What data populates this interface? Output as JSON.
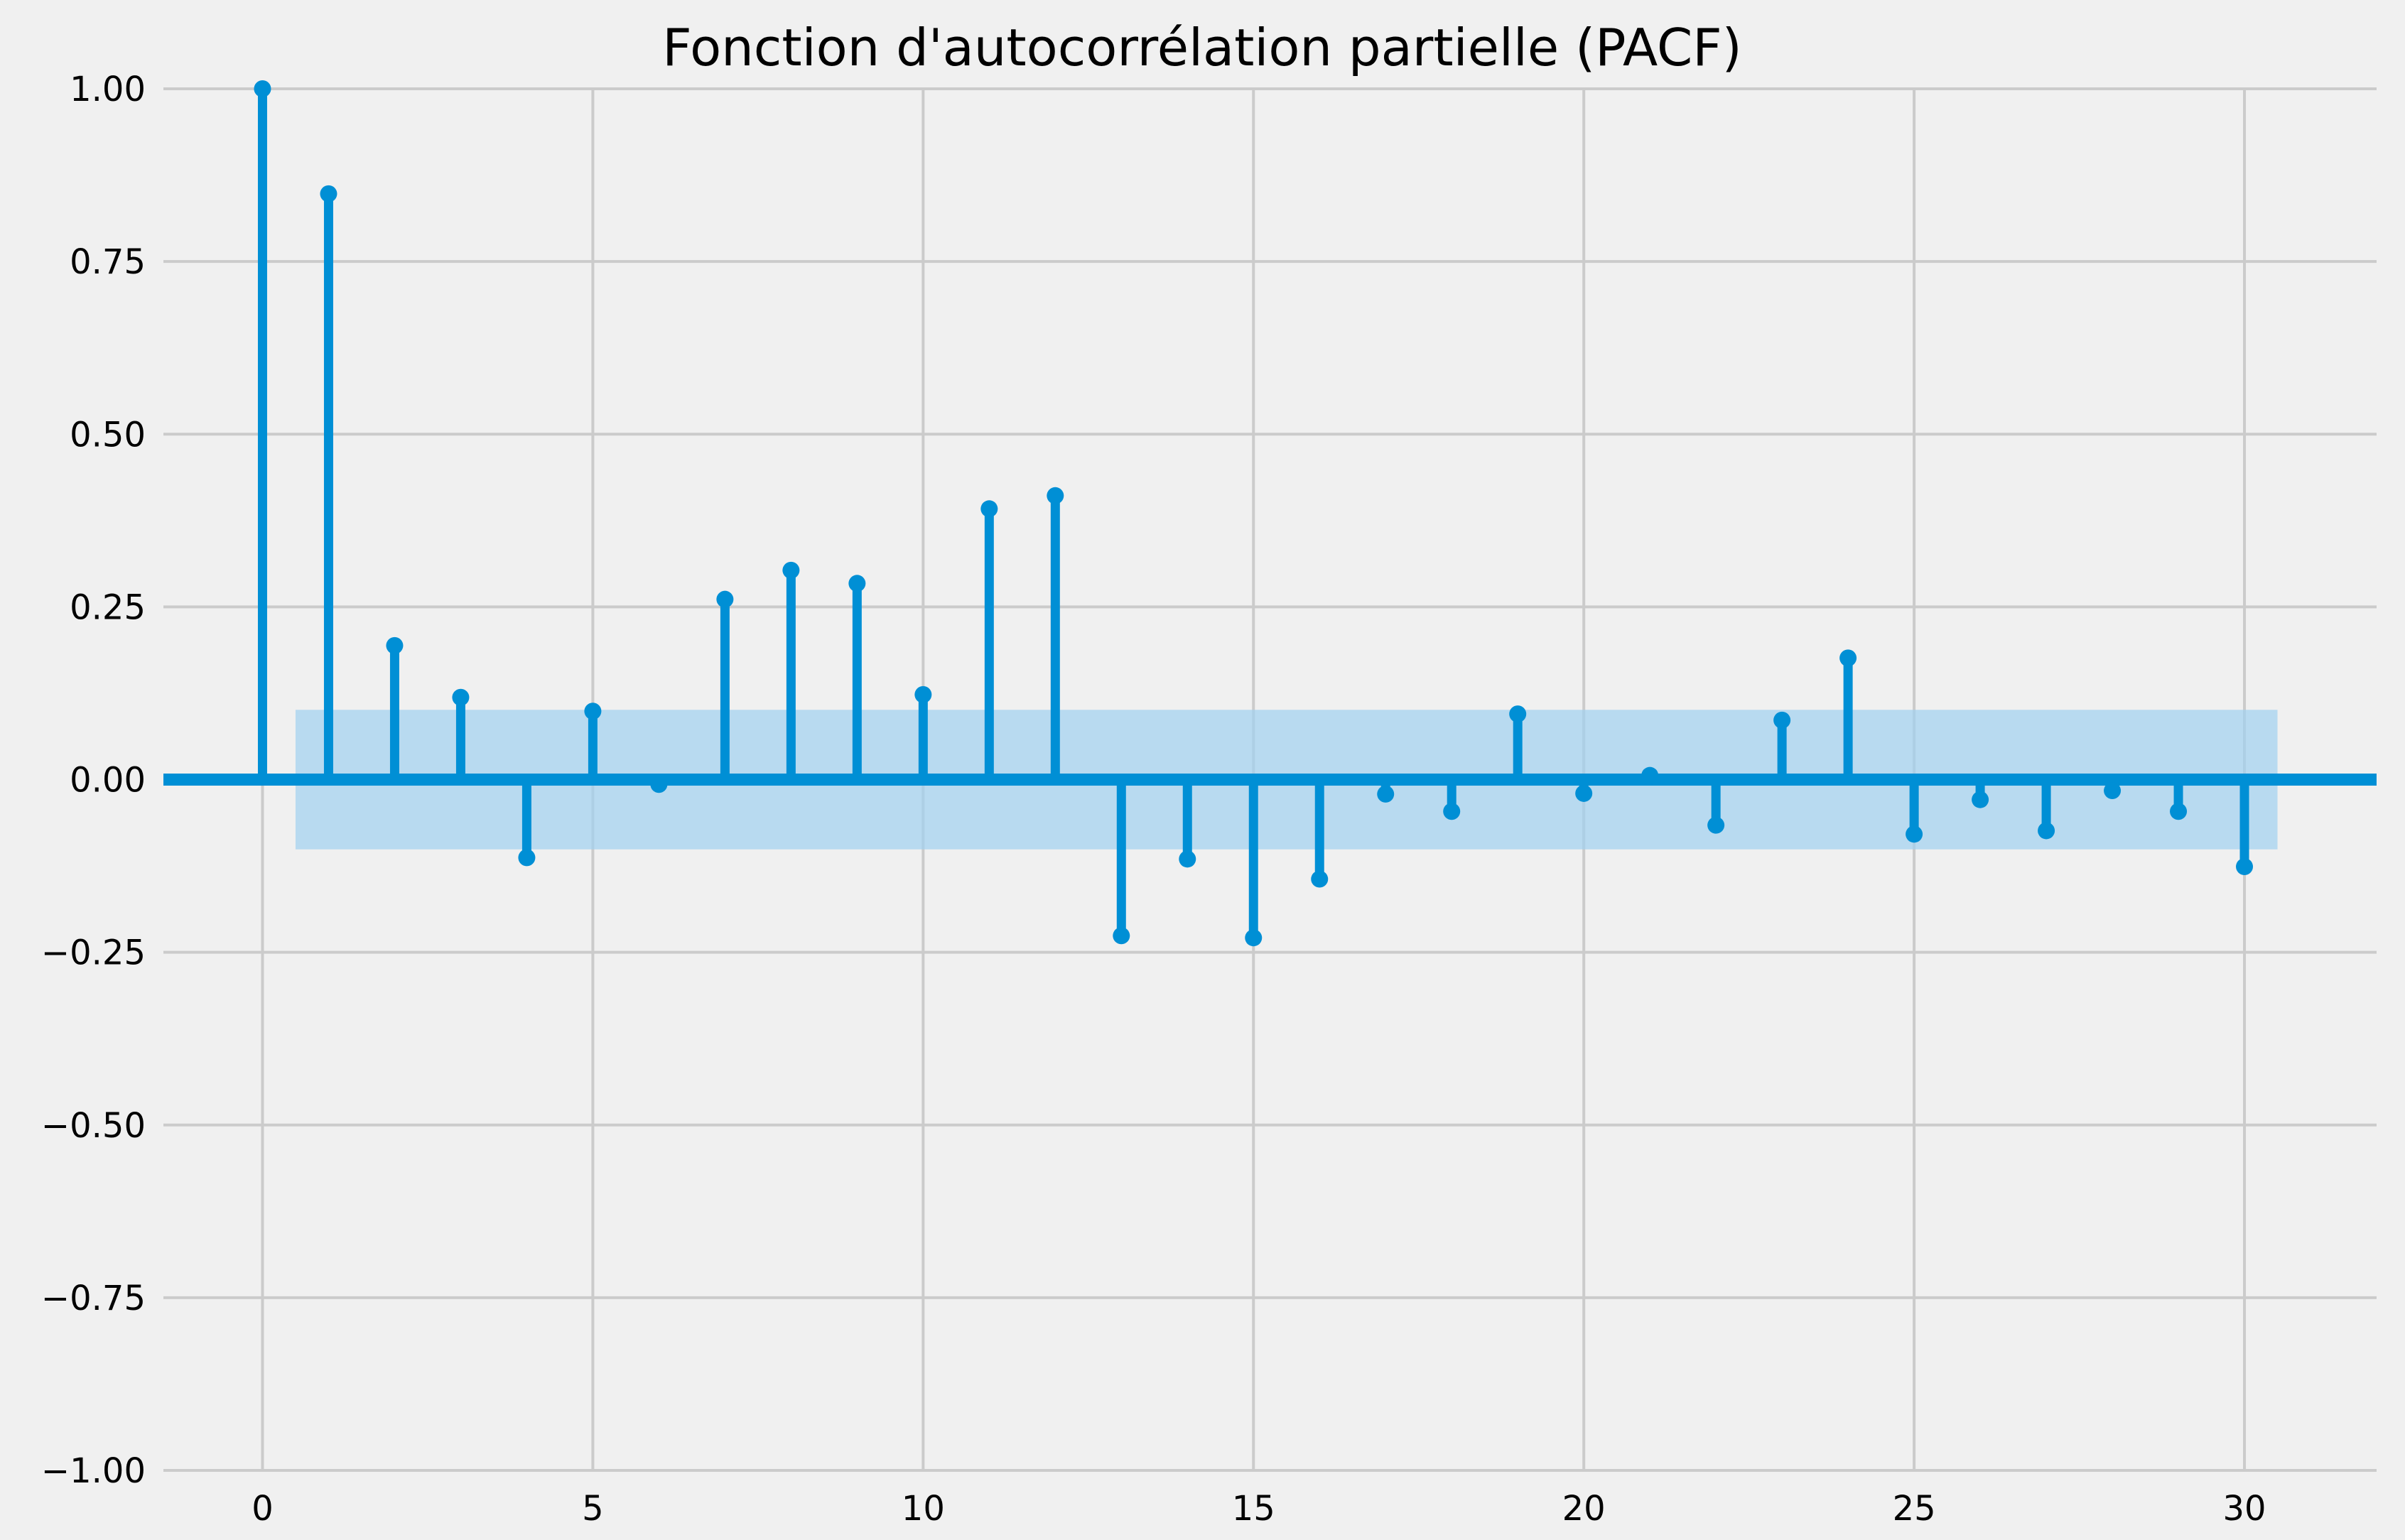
{
  "chart_data": {
    "type": "stem",
    "title": "Fonction d'autocorrélation partielle (PACF)",
    "xlabel": "",
    "ylabel": "",
    "x": [
      0,
      1,
      2,
      3,
      4,
      5,
      6,
      7,
      8,
      9,
      10,
      11,
      12,
      13,
      14,
      15,
      16,
      17,
      18,
      19,
      20,
      21,
      22,
      23,
      24,
      25,
      26,
      27,
      28,
      29,
      30
    ],
    "values": [
      1.0,
      0.848,
      0.194,
      0.119,
      -0.113,
      0.099,
      -0.007,
      0.261,
      0.303,
      0.284,
      0.123,
      0.392,
      0.411,
      -0.226,
      -0.115,
      -0.229,
      -0.144,
      -0.021,
      -0.046,
      0.095,
      -0.02,
      0.006,
      -0.066,
      0.086,
      0.176,
      -0.079,
      -0.029,
      -0.074,
      -0.016,
      -0.046,
      -0.126
    ],
    "confidence_band": {
      "lower": -0.101,
      "upper": 0.101,
      "x_range": [
        0.5,
        30.5
      ]
    },
    "xlim": [
      -1.5,
      32.0
    ],
    "ylim": [
      -1.0,
      1.0
    ],
    "xticks": [
      0,
      5,
      10,
      15,
      20,
      25,
      30
    ],
    "xtick_labels": [
      "0",
      "5",
      "10",
      "15",
      "20",
      "25",
      "30"
    ],
    "yticks": [
      -1.0,
      -0.75,
      -0.5,
      -0.25,
      0.0,
      0.25,
      0.5,
      0.75,
      1.0
    ],
    "ytick_labels": [
      "−1.00",
      "−0.75",
      "−0.50",
      "−0.25",
      "0.00",
      "0.25",
      "0.50",
      "0.75",
      "1.00"
    ],
    "grid": true,
    "colors": {
      "marker": "#008fd5",
      "band": "#9fd0f0",
      "grid": "#cbcbcb",
      "background": "#f0f0f0"
    }
  }
}
